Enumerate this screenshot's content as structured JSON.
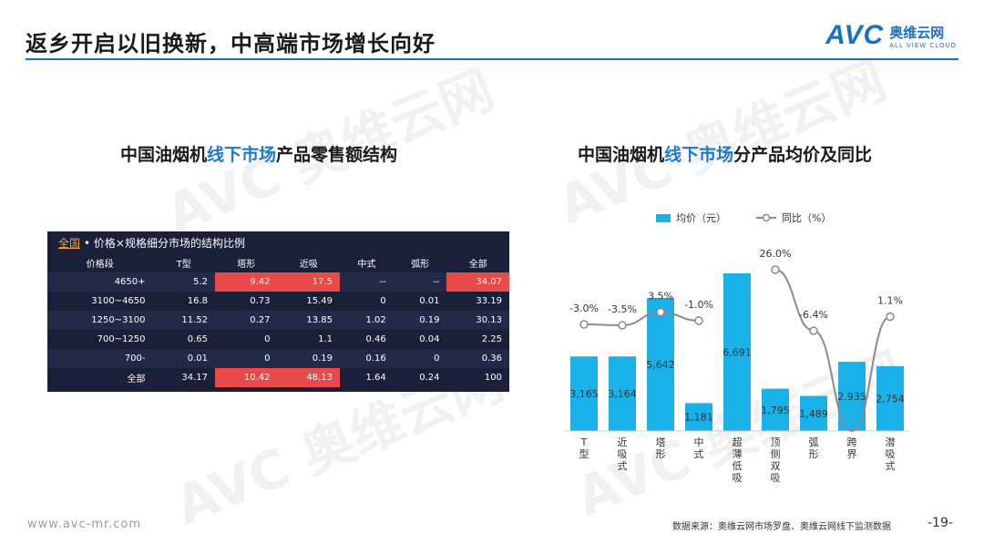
{
  "header": {
    "title": "返乡开启以旧换新，中高端市场增长向好",
    "logo_mark": "AVC",
    "logo_cn": "奥维云网",
    "logo_en": "ALL VIEW CLOUD"
  },
  "left_panel": {
    "subtitle_a": "中国油烟机",
    "subtitle_hl": "线下市场",
    "subtitle_b": "产品零售额结构",
    "table_link": "全国",
    "table_caption": "• 价格×规格细分市场的结构比例",
    "columns": [
      "价格段",
      "T型",
      "塔形",
      "近吸",
      "中式",
      "弧形",
      "全部"
    ],
    "rows": [
      [
        "4650+",
        "5.2",
        "9.42",
        "17.5",
        "--",
        "--",
        "34.07"
      ],
      [
        "3100~4650",
        "16.8",
        "0.73",
        "15.49",
        "0",
        "0.01",
        "33.19"
      ],
      [
        "1250~3100",
        "11.52",
        "0.27",
        "13.85",
        "1.02",
        "0.19",
        "30.13"
      ],
      [
        "700~1250",
        "0.65",
        "0",
        "1.1",
        "0.46",
        "0.04",
        "2.25"
      ],
      [
        "700-",
        "0.01",
        "0",
        "0.19",
        "0.16",
        "0",
        "0.36"
      ],
      [
        "全部",
        "34.17",
        "10.42",
        "48.13",
        "1.64",
        "0.24",
        "100"
      ]
    ],
    "highlight_color": "#e84a4a"
  },
  "right_panel": {
    "subtitle_a": "中国油烟机",
    "subtitle_hl": "线下市场",
    "subtitle_b": "分产品均价及同比"
  },
  "chart_data": {
    "type": "bar",
    "categories": [
      "T型",
      "近吸式",
      "塔形",
      "中式",
      "超薄低吸",
      "顶侧双吸",
      "弧形",
      "跨界",
      "潜吸式"
    ],
    "series": [
      {
        "name": "均价（元）",
        "type": "bar",
        "values": [
          3165,
          3164,
          5642,
          1181,
          6691,
          1795,
          1489,
          2935,
          2754
        ],
        "labels": [
          "3,165",
          "3,164",
          "5,642",
          "1,181",
          "6,691",
          "1,795",
          "1,489",
          "2,935",
          "2,754"
        ],
        "color": "#1ab0e8"
      },
      {
        "name": "同比（%）",
        "type": "line",
        "values": [
          -3.0,
          -3.5,
          3.5,
          -1.0,
          null,
          26.0,
          -6.4,
          null,
          1.1
        ],
        "labels": [
          "-3.0%",
          "-3.5%",
          "3.5%",
          "-1.0%",
          "",
          "26.0%",
          "-6.4%",
          "",
          "1.1%"
        ],
        "color": "#8a8a8a"
      }
    ],
    "legend_position": "top"
  },
  "footer": {
    "url": "www.avc-mr.com",
    "source": "数据来源：奥维云网市场罗盘、奥维云网线下监测数据",
    "page": "-19-"
  },
  "watermark": {
    "text": "AVC 奥维云网",
    "sub": "ALL VIEW CLOUD"
  }
}
